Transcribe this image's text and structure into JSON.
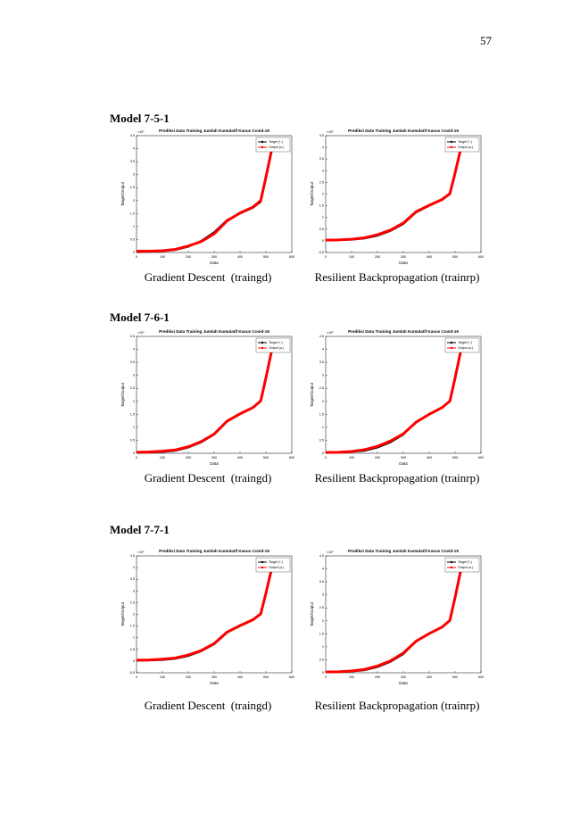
{
  "page_number": "57",
  "sections": [
    {
      "title": "Model 7-5-1",
      "figures": [
        {
          "caption": "Gradient Descent  (traingd)",
          "chart_data": {
            "type": "line",
            "title": "Prediksi Data Training Jumlah Kumulatif Kasus Covid-19",
            "exponent_label": "×10⁶",
            "xlabel": "Data",
            "ylabel": "Target/Output",
            "xlim": [
              0,
              600
            ],
            "xticks": [
              0,
              100,
              200,
              300,
              400,
              500,
              600
            ],
            "ylim": [
              0,
              4.5
            ],
            "yticks": [
              0,
              0.5,
              1,
              1.5,
              2,
              2.5,
              3,
              3.5,
              4,
              4.5
            ],
            "legend": "upper right",
            "x": [
              0,
              50,
              100,
              150,
              200,
              250,
              300,
              350,
              400,
              450,
              480,
              500,
              520,
              530
            ],
            "series": [
              {
                "name": "Target (*-)",
                "color": "#000000",
                "values": [
                  0.02,
                  0.03,
                  0.05,
                  0.1,
                  0.22,
                  0.45,
                  0.78,
                  1.25,
                  1.5,
                  1.72,
                  1.95,
                  2.85,
                  3.8,
                  4.35
                ]
              },
              {
                "name": "Output (o-)",
                "color": "#ff0000",
                "values": [
                  0.05,
                  0.05,
                  0.07,
                  0.12,
                  0.25,
                  0.42,
                  0.72,
                  1.22,
                  1.52,
                  1.75,
                  2.0,
                  2.9,
                  3.85,
                  4.4
                ]
              }
            ]
          }
        },
        {
          "caption": "Resilient Backpropagation (trainrp)",
          "chart_data": {
            "type": "line",
            "title": "Prediksi Data Training Jumlah Kumulatif Kasus Covid-19",
            "exponent_label": "×10⁶",
            "xlabel": "Data",
            "ylabel": "Target/Output",
            "xlim": [
              0,
              600
            ],
            "xticks": [
              0,
              100,
              200,
              300,
              400,
              500,
              600
            ],
            "ylim": [
              -0.5,
              4.5
            ],
            "yticks": [
              -0.5,
              0,
              0.5,
              1,
              1.5,
              2,
              2.5,
              3,
              3.5,
              4,
              4.5
            ],
            "legend": "upper right",
            "x": [
              0,
              50,
              100,
              150,
              200,
              250,
              300,
              350,
              400,
              450,
              480,
              500,
              520,
              530
            ],
            "series": [
              {
                "name": "Target (*-)",
                "color": "#000000",
                "values": [
                  0.02,
                  0.03,
                  0.05,
                  0.1,
                  0.22,
                  0.42,
                  0.72,
                  1.22,
                  1.5,
                  1.75,
                  2.0,
                  2.85,
                  3.8,
                  4.35
                ]
              },
              {
                "name": "Output (o-)",
                "color": "#ff0000",
                "values": [
                  0.03,
                  0.04,
                  0.07,
                  0.13,
                  0.26,
                  0.46,
                  0.76,
                  1.25,
                  1.52,
                  1.77,
                  2.02,
                  2.9,
                  3.85,
                  4.4
                ]
              }
            ]
          }
        }
      ]
    },
    {
      "title": "Model 7-6-1",
      "figures": [
        {
          "caption": "Gradient Descent  (traingd)",
          "chart_data": {
            "type": "line",
            "title": "Prediksi Data Training Jumlah Kumulatif Kasus Covid-19",
            "exponent_label": "×10⁶",
            "xlabel": "Data",
            "ylabel": "Target/Output",
            "xlim": [
              0,
              600
            ],
            "xticks": [
              0,
              100,
              200,
              300,
              400,
              500,
              600
            ],
            "ylim": [
              0,
              4.5
            ],
            "yticks": [
              0,
              0.5,
              1,
              1.5,
              2,
              2.5,
              3,
              3.5,
              4,
              4.5
            ],
            "legend": "upper right",
            "x": [
              0,
              50,
              100,
              150,
              200,
              250,
              300,
              350,
              400,
              450,
              480,
              500,
              520,
              530
            ],
            "series": [
              {
                "name": "Target (*-)",
                "color": "#000000",
                "values": [
                  0.02,
                  0.03,
                  0.05,
                  0.1,
                  0.22,
                  0.42,
                  0.72,
                  1.22,
                  1.5,
                  1.75,
                  2.0,
                  2.85,
                  3.8,
                  4.35
                ]
              },
              {
                "name": "Output (o-)",
                "color": "#ff0000",
                "values": [
                  0.04,
                  0.05,
                  0.08,
                  0.13,
                  0.25,
                  0.45,
                  0.74,
                  1.24,
                  1.52,
                  1.76,
                  2.02,
                  2.9,
                  3.85,
                  4.4
                ]
              }
            ]
          }
        },
        {
          "caption": "Resilient Backpropagation (trainrp)",
          "chart_data": {
            "type": "line",
            "title": "Prediksi Data Training Jumlah Kumulatif Kasus Covid-19",
            "exponent_label": "×10⁶",
            "xlabel": "Data",
            "ylabel": "Target/Output",
            "xlim": [
              0,
              600
            ],
            "xticks": [
              0,
              100,
              200,
              300,
              400,
              500,
              600
            ],
            "ylim": [
              0,
              4.5
            ],
            "yticks": [
              0,
              0.5,
              1,
              1.5,
              2,
              2.5,
              3,
              3.5,
              4,
              4.5
            ],
            "legend": "upper right",
            "x": [
              0,
              50,
              100,
              150,
              200,
              250,
              300,
              350,
              400,
              450,
              480,
              500,
              520,
              530
            ],
            "series": [
              {
                "name": "Target (*-)",
                "color": "#000000",
                "values": [
                  0.02,
                  0.03,
                  0.05,
                  0.1,
                  0.22,
                  0.42,
                  0.72,
                  1.22,
                  1.5,
                  1.75,
                  2.0,
                  2.85,
                  3.8,
                  4.35
                ]
              },
              {
                "name": "Output (o-)",
                "color": "#ff0000",
                "values": [
                  0.03,
                  0.04,
                  0.07,
                  0.14,
                  0.27,
                  0.47,
                  0.75,
                  1.2,
                  1.5,
                  1.76,
                  2.01,
                  2.9,
                  3.85,
                  4.4
                ]
              }
            ]
          }
        }
      ]
    },
    {
      "title": "Model 7-7-1",
      "figures": [
        {
          "caption": "Gradient Descent  (traingd)",
          "chart_data": {
            "type": "line",
            "title": "Prediksi Data Training Jumlah Kumulatif Kasus Covid-19",
            "exponent_label": "×10⁶",
            "xlabel": "Data",
            "ylabel": "Target/Output",
            "xlim": [
              0,
              600
            ],
            "xticks": [
              0,
              100,
              200,
              300,
              400,
              500,
              600
            ],
            "ylim": [
              -0.5,
              4.5
            ],
            "yticks": [
              -0.5,
              0,
              0.5,
              1,
              1.5,
              2,
              2.5,
              3,
              3.5,
              4,
              4.5
            ],
            "legend": "upper right",
            "x": [
              0,
              50,
              100,
              150,
              200,
              250,
              300,
              350,
              400,
              450,
              480,
              500,
              520,
              530
            ],
            "series": [
              {
                "name": "Target (*-)",
                "color": "#000000",
                "values": [
                  0.02,
                  0.03,
                  0.05,
                  0.1,
                  0.22,
                  0.42,
                  0.72,
                  1.22,
                  1.5,
                  1.75,
                  2.0,
                  2.85,
                  3.8,
                  4.35
                ]
              },
              {
                "name": "Output (o-)",
                "color": "#ff0000",
                "values": [
                  0.04,
                  0.05,
                  0.08,
                  0.13,
                  0.26,
                  0.45,
                  0.75,
                  1.24,
                  1.52,
                  1.77,
                  2.02,
                  2.9,
                  3.85,
                  4.4
                ]
              }
            ]
          }
        },
        {
          "caption": "Resilient Backpropagation (trainrp)",
          "chart_data": {
            "type": "line",
            "title": "Prediksi Data Training Jumlah Kumulatif Kasus Covid-19",
            "exponent_label": "×10⁶",
            "xlabel": "Data",
            "ylabel": "Target/Output",
            "xlim": [
              0,
              600
            ],
            "xticks": [
              0,
              100,
              200,
              300,
              400,
              500,
              600
            ],
            "ylim": [
              0,
              4.5
            ],
            "yticks": [
              0,
              0.5,
              1,
              1.5,
              2,
              2.5,
              3,
              3.5,
              4,
              4.5
            ],
            "legend": "upper right",
            "x": [
              0,
              50,
              100,
              150,
              200,
              250,
              300,
              350,
              400,
              450,
              480,
              500,
              520,
              530
            ],
            "series": [
              {
                "name": "Target (*-)",
                "color": "#000000",
                "values": [
                  0.02,
                  0.03,
                  0.05,
                  0.1,
                  0.22,
                  0.42,
                  0.72,
                  1.22,
                  1.5,
                  1.75,
                  2.0,
                  2.85,
                  3.8,
                  4.35
                ]
              },
              {
                "name": "Output (o-)",
                "color": "#ff0000",
                "values": [
                  0.03,
                  0.04,
                  0.07,
                  0.13,
                  0.26,
                  0.46,
                  0.76,
                  1.22,
                  1.51,
                  1.76,
                  2.02,
                  2.9,
                  3.85,
                  4.4
                ]
              }
            ]
          }
        }
      ]
    }
  ]
}
